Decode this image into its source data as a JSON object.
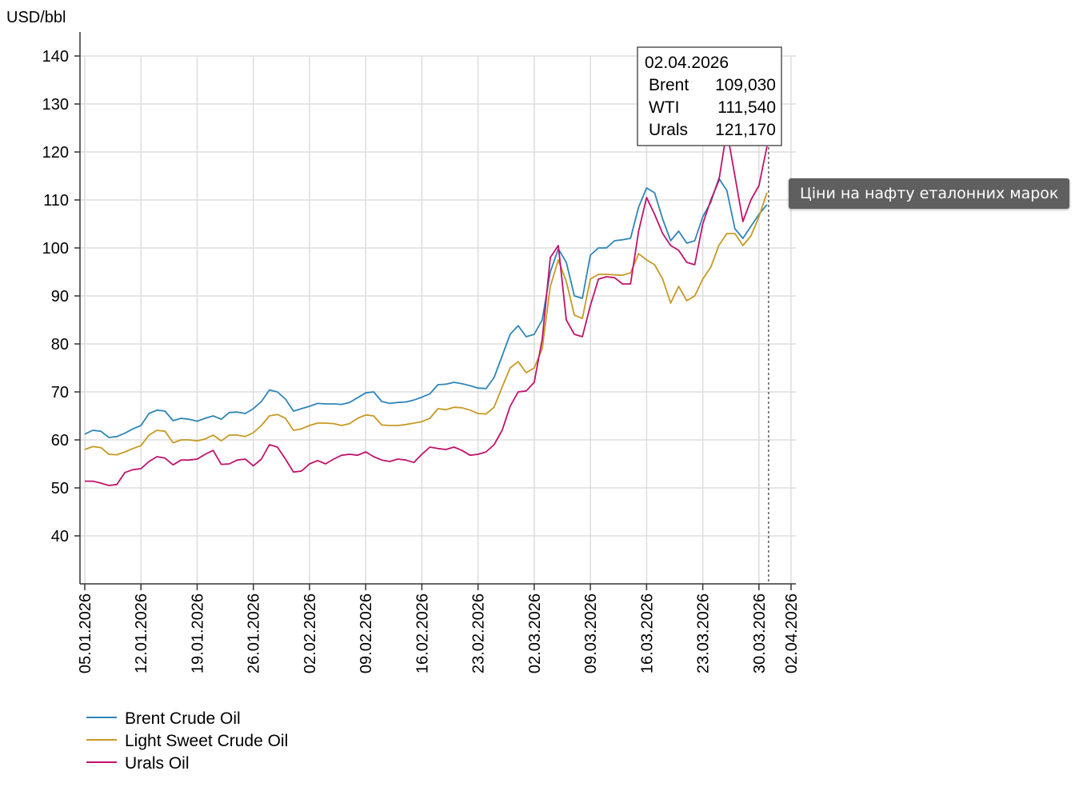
{
  "chart_data": {
    "type": "line",
    "ylabel": "USD/bbl",
    "ylim": [
      30,
      140
    ],
    "yticks": [
      40,
      50,
      60,
      70,
      80,
      90,
      100,
      110,
      120,
      130,
      140
    ],
    "x_tick_labels": [
      "05.01.2026",
      "12.01.2026",
      "19.01.2026",
      "26.01.2026",
      "02.02.2026",
      "09.02.2026",
      "16.02.2026",
      "23.02.2026",
      "02.03.2026",
      "09.03.2026",
      "16.03.2026",
      "23.03.2026",
      "30.03.2026",
      "02.04.2026"
    ],
    "x_range_days": [
      0,
      88
    ],
    "x_tick_days": [
      0,
      7,
      14,
      21,
      28,
      35,
      42,
      49,
      56,
      63,
      70,
      77,
      84,
      88
    ],
    "series": [
      {
        "name": "Brent Crude Oil",
        "short": "Brent",
        "color": "#2f86b8",
        "points": [
          [
            0,
            61.2
          ],
          [
            1,
            62
          ],
          [
            2,
            61.8
          ],
          [
            3,
            60.5
          ],
          [
            4,
            60.7
          ],
          [
            5,
            61.4
          ],
          [
            6,
            62.3
          ],
          [
            7,
            63
          ],
          [
            8,
            65.5
          ],
          [
            9,
            66.2
          ],
          [
            10,
            66
          ],
          [
            11,
            64
          ],
          [
            12,
            64.5
          ],
          [
            13,
            64.3
          ],
          [
            14,
            63.9
          ],
          [
            15,
            64.5
          ],
          [
            16,
            65
          ],
          [
            17,
            64.3
          ],
          [
            18,
            65.7
          ],
          [
            19,
            65.8
          ],
          [
            20,
            65.5
          ],
          [
            21,
            66.5
          ],
          [
            22,
            68
          ],
          [
            23,
            70.4
          ],
          [
            24,
            70
          ],
          [
            25,
            68.5
          ],
          [
            26,
            66
          ],
          [
            27,
            66.5
          ],
          [
            28,
            67
          ],
          [
            29,
            67.6
          ],
          [
            30,
            67.5
          ],
          [
            31,
            67.5
          ],
          [
            32,
            67.4
          ],
          [
            33,
            67.8
          ],
          [
            34,
            68.8
          ],
          [
            35,
            69.8
          ],
          [
            36,
            70
          ],
          [
            37,
            68
          ],
          [
            38,
            67.6
          ],
          [
            39,
            67.8
          ],
          [
            40,
            67.9
          ],
          [
            41,
            68.3
          ],
          [
            42,
            68.9
          ],
          [
            43,
            69.6
          ],
          [
            44,
            71.5
          ],
          [
            45,
            71.6
          ],
          [
            46,
            72
          ],
          [
            47,
            71.7
          ],
          [
            48,
            71.3
          ],
          [
            49,
            70.8
          ],
          [
            50,
            70.7
          ],
          [
            51,
            73
          ],
          [
            52,
            77.5
          ],
          [
            53,
            82
          ],
          [
            54,
            83.8
          ],
          [
            55,
            81.5
          ],
          [
            56,
            82
          ],
          [
            57,
            85
          ],
          [
            58,
            95
          ],
          [
            59,
            99.8
          ],
          [
            60,
            97
          ],
          [
            61,
            90
          ],
          [
            62,
            89.5
          ],
          [
            63,
            98.5
          ],
          [
            64,
            100
          ],
          [
            65,
            100
          ],
          [
            66,
            101.5
          ],
          [
            67,
            101.7
          ],
          [
            68,
            102
          ],
          [
            69,
            108.5
          ],
          [
            70,
            112.5
          ],
          [
            71,
            111.5
          ],
          [
            72,
            106
          ],
          [
            73,
            101.5
          ],
          [
            74,
            103.5
          ],
          [
            75,
            101
          ],
          [
            76,
            101.5
          ],
          [
            77,
            106.5
          ],
          [
            78,
            109.5
          ],
          [
            79,
            114.5
          ],
          [
            80,
            112
          ],
          [
            81,
            104
          ],
          [
            82,
            102
          ],
          [
            83,
            104.5
          ],
          [
            84,
            107
          ],
          [
            85,
            109.03
          ]
        ]
      },
      {
        "name": "Light Sweet Crude Oil",
        "short": "WTI",
        "color": "#c79a24",
        "points": [
          [
            0,
            58
          ],
          [
            1,
            58.6
          ],
          [
            2,
            58.4
          ],
          [
            3,
            57
          ],
          [
            4,
            56.9
          ],
          [
            5,
            57.5
          ],
          [
            6,
            58.2
          ],
          [
            7,
            58.8
          ],
          [
            8,
            61
          ],
          [
            9,
            62
          ],
          [
            10,
            61.8
          ],
          [
            11,
            59.4
          ],
          [
            12,
            60
          ],
          [
            13,
            60
          ],
          [
            14,
            59.8
          ],
          [
            15,
            60.2
          ],
          [
            16,
            61
          ],
          [
            17,
            59.8
          ],
          [
            18,
            61
          ],
          [
            19,
            61
          ],
          [
            20,
            60.7
          ],
          [
            21,
            61.5
          ],
          [
            22,
            63
          ],
          [
            23,
            65
          ],
          [
            24,
            65.3
          ],
          [
            25,
            64.5
          ],
          [
            26,
            62
          ],
          [
            27,
            62.3
          ],
          [
            28,
            63
          ],
          [
            29,
            63.5
          ],
          [
            30,
            63.5
          ],
          [
            31,
            63.4
          ],
          [
            32,
            63
          ],
          [
            33,
            63.4
          ],
          [
            34,
            64.5
          ],
          [
            35,
            65.2
          ],
          [
            36,
            65
          ],
          [
            37,
            63.1
          ],
          [
            38,
            63
          ],
          [
            39,
            63
          ],
          [
            40,
            63.2
          ],
          [
            41,
            63.5
          ],
          [
            42,
            63.8
          ],
          [
            43,
            64.5
          ],
          [
            44,
            66.5
          ],
          [
            45,
            66.3
          ],
          [
            46,
            66.8
          ],
          [
            47,
            66.7
          ],
          [
            48,
            66.2
          ],
          [
            49,
            65.5
          ],
          [
            50,
            65.4
          ],
          [
            51,
            66.8
          ],
          [
            52,
            71
          ],
          [
            53,
            75
          ],
          [
            54,
            76.3
          ],
          [
            55,
            74
          ],
          [
            56,
            75
          ],
          [
            57,
            79
          ],
          [
            58,
            92
          ],
          [
            59,
            97.5
          ],
          [
            60,
            93
          ],
          [
            61,
            86
          ],
          [
            62,
            85.3
          ],
          [
            63,
            93.5
          ],
          [
            64,
            94.5
          ],
          [
            65,
            94.5
          ],
          [
            66,
            94.4
          ],
          [
            67,
            94.3
          ],
          [
            68,
            94.8
          ],
          [
            69,
            98.8
          ],
          [
            70,
            97.5
          ],
          [
            71,
            96.5
          ],
          [
            72,
            93.5
          ],
          [
            73,
            88.5
          ],
          [
            74,
            92
          ],
          [
            75,
            89
          ],
          [
            76,
            90
          ],
          [
            77,
            93.5
          ],
          [
            78,
            96
          ],
          [
            79,
            100.5
          ],
          [
            80,
            103
          ],
          [
            81,
            103
          ],
          [
            82,
            100.5
          ],
          [
            83,
            102.5
          ],
          [
            84,
            106.5
          ],
          [
            85,
            111.54
          ]
        ]
      },
      {
        "name": "Urals Oil",
        "short": "Urals",
        "color": "#c0136b",
        "points": [
          [
            0,
            51.4
          ],
          [
            1,
            51.4
          ],
          [
            2,
            51
          ],
          [
            3,
            50.5
          ],
          [
            4,
            50.7
          ],
          [
            5,
            53.2
          ],
          [
            6,
            53.8
          ],
          [
            7,
            54
          ],
          [
            8,
            55.5
          ],
          [
            9,
            56.5
          ],
          [
            10,
            56.2
          ],
          [
            11,
            54.8
          ],
          [
            12,
            55.8
          ],
          [
            13,
            55.8
          ],
          [
            14,
            56
          ],
          [
            15,
            57
          ],
          [
            16,
            57.8
          ],
          [
            17,
            54.9
          ],
          [
            18,
            55
          ],
          [
            19,
            55.8
          ],
          [
            20,
            56
          ],
          [
            21,
            54.6
          ],
          [
            22,
            56
          ],
          [
            23,
            59
          ],
          [
            24,
            58.5
          ],
          [
            25,
            56
          ],
          [
            26,
            53.3
          ],
          [
            27,
            53.5
          ],
          [
            28,
            55
          ],
          [
            29,
            55.7
          ],
          [
            30,
            55
          ],
          [
            31,
            56
          ],
          [
            32,
            56.8
          ],
          [
            33,
            57
          ],
          [
            34,
            56.8
          ],
          [
            35,
            57.5
          ],
          [
            36,
            56.5
          ],
          [
            37,
            55.8
          ],
          [
            38,
            55.5
          ],
          [
            39,
            56
          ],
          [
            40,
            55.8
          ],
          [
            41,
            55.3
          ],
          [
            42,
            57
          ],
          [
            43,
            58.5
          ],
          [
            44,
            58.2
          ],
          [
            45,
            58
          ],
          [
            46,
            58.5
          ],
          [
            47,
            57.8
          ],
          [
            48,
            56.8
          ],
          [
            49,
            57
          ],
          [
            50,
            57.5
          ],
          [
            51,
            59
          ],
          [
            52,
            62
          ],
          [
            53,
            67
          ],
          [
            54,
            70
          ],
          [
            55,
            70.2
          ],
          [
            56,
            72
          ],
          [
            57,
            81
          ],
          [
            58,
            98
          ],
          [
            59,
            100.5
          ],
          [
            60,
            85
          ],
          [
            61,
            82
          ],
          [
            62,
            81.5
          ],
          [
            63,
            88
          ],
          [
            64,
            93.5
          ],
          [
            65,
            94
          ],
          [
            66,
            93.8
          ],
          [
            67,
            92.5
          ],
          [
            68,
            92.5
          ],
          [
            69,
            103.5
          ],
          [
            70,
            110.5
          ],
          [
            71,
            107
          ],
          [
            72,
            103
          ],
          [
            73,
            100.5
          ],
          [
            74,
            99.5
          ],
          [
            75,
            97
          ],
          [
            76,
            96.5
          ],
          [
            77,
            105
          ],
          [
            78,
            110
          ],
          [
            79,
            114
          ],
          [
            80,
            124.5
          ],
          [
            81,
            115
          ],
          [
            82,
            105.5
          ],
          [
            83,
            110
          ],
          [
            84,
            113
          ],
          [
            85,
            121.17
          ]
        ]
      }
    ],
    "tooltip": {
      "date": "02.04.2026",
      "rows": [
        {
          "label": "Brent",
          "value": "109,030"
        },
        {
          "label": "WTI",
          "value": "111,540"
        },
        {
          "label": "Urals",
          "value": "121,170"
        }
      ]
    },
    "hint": "Ціни на нафту еталонних марок"
  }
}
